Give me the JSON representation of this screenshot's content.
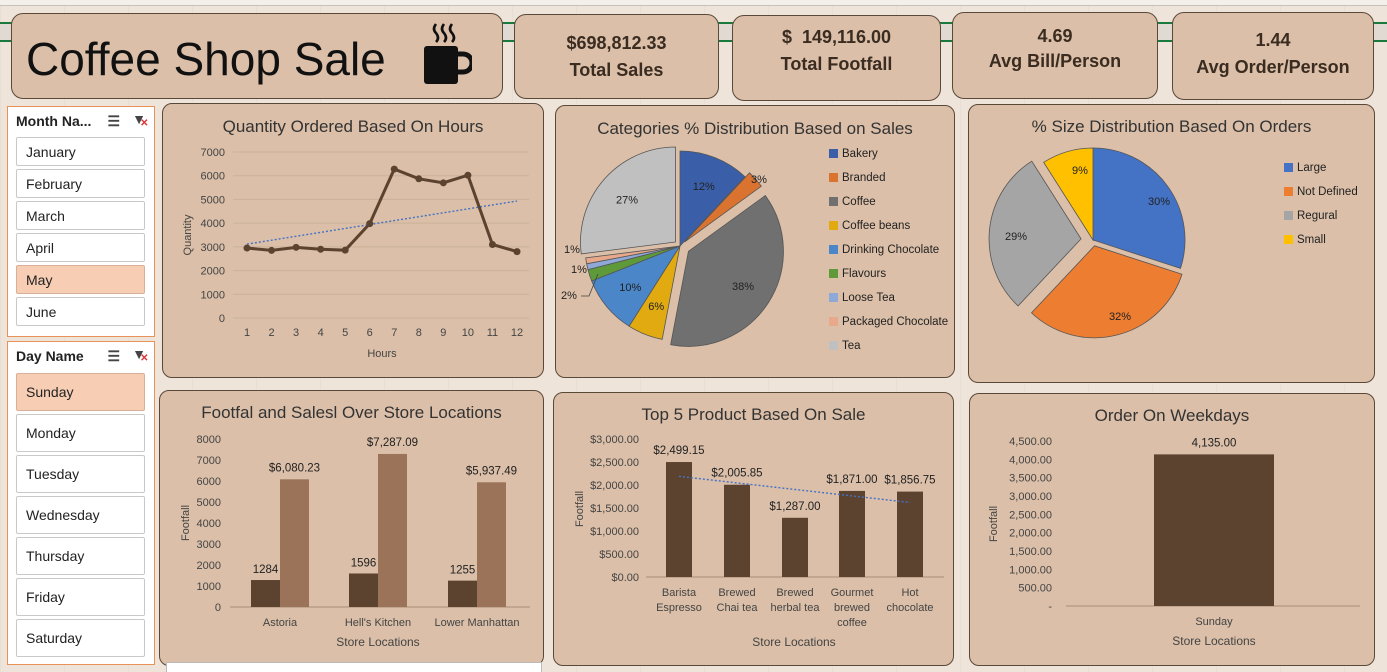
{
  "title": "Coffee Shop Sale",
  "kpis": [
    {
      "value": "$698,812.33",
      "label": "Total Sales"
    },
    {
      "value": "$  149,116.00",
      "label": "Total Footfall"
    },
    {
      "value": "4.69",
      "label": "Avg Bill/Person"
    },
    {
      "value": "1.44",
      "label": "Avg Order/Person"
    }
  ],
  "month_slicer": {
    "header": "Month Na...",
    "items": [
      "January",
      "February",
      "March",
      "April",
      "May",
      "June"
    ],
    "selected": "May"
  },
  "day_slicer": {
    "header": "Day Name",
    "items": [
      "Sunday",
      "Monday",
      "Tuesday",
      "Wednesday",
      "Thursday",
      "Friday",
      "Saturday"
    ],
    "selected": "Sunday"
  },
  "colors": {
    "brand_dark": "#5c4330",
    "brand_light": "#9b7358",
    "panel": "#dbbfa8",
    "trend": "#4472c4"
  },
  "chart_data": [
    {
      "type": "line",
      "title": "Quantity Ordered Based On Hours",
      "xlabel": "Hours",
      "ylabel": "Quantity",
      "x": [
        1,
        2,
        3,
        4,
        5,
        6,
        7,
        8,
        9,
        10,
        11,
        12
      ],
      "values": [
        2950,
        2850,
        2980,
        2900,
        2860,
        3980,
        6280,
        5870,
        5700,
        6020,
        3100,
        2800
      ],
      "ylim": [
        0,
        7000
      ],
      "yticks": [
        0,
        1000,
        2000,
        3000,
        4000,
        5000,
        6000,
        7000
      ],
      "trendline": "linear"
    },
    {
      "type": "pie",
      "title": "Categories % Distribution Based on Sales",
      "labels": [
        "Bakery",
        "Branded",
        "Coffee",
        "Coffee beans",
        "Drinking Chocolate",
        "Flavours",
        "Loose Tea",
        "Packaged Chocolate",
        "Tea"
      ],
      "values": [
        12,
        3,
        38,
        6,
        10,
        2,
        1,
        1,
        27
      ],
      "value_labels": [
        "12%",
        "3%",
        "38%",
        "6%",
        "10%",
        "2%",
        "1%",
        "1%",
        "27%"
      ],
      "colors": [
        "#3a5fa8",
        "#d9732f",
        "#707070",
        "#e0aa10",
        "#4a86c8",
        "#5f9a3a",
        "#8ea8d8",
        "#e8a88a",
        "#c0c0c0"
      ],
      "legend": "right"
    },
    {
      "type": "pie",
      "title": "% Size Distribution Based On Orders",
      "labels": [
        "Large",
        "Not Defined",
        "Regural",
        "Small"
      ],
      "values": [
        30,
        32,
        29,
        9
      ],
      "value_labels": [
        "30%",
        "32%",
        "29%",
        "9%"
      ],
      "colors": [
        "#4472c4",
        "#ed7d31",
        "#a5a5a5",
        "#ffc000"
      ],
      "legend": "right"
    },
    {
      "type": "bar",
      "title": "Footfal and Salesl Over Store Locations",
      "xlabel": "Store Locations",
      "ylabel": "Footfall",
      "categories": [
        "Astoria",
        "Hell's Kitchen",
        "Lower Manhattan"
      ],
      "series": [
        {
          "values": [
            1284,
            1596,
            1255
          ],
          "labels": [
            "1284",
            "1596",
            "1255"
          ]
        },
        {
          "values": [
            6080.23,
            7287.09,
            5937.49
          ],
          "labels": [
            "$6,080.23",
            "$7,287.09",
            "$5,937.49"
          ]
        }
      ],
      "ylim": [
        0,
        8000
      ],
      "yticks": [
        "0",
        "1000",
        "2000",
        "3000",
        "4000",
        "5000",
        "6000",
        "7000",
        "8000"
      ]
    },
    {
      "type": "bar",
      "title": "Top 5  Product Based On Sale",
      "xlabel": "Store Locations",
      "ylabel": "Footfall",
      "categories": [
        [
          "Barista",
          "Espresso"
        ],
        [
          "Brewed",
          "Chai tea"
        ],
        [
          "Brewed",
          "herbal tea"
        ],
        [
          "Gourmet",
          "brewed",
          "coffee"
        ],
        [
          "Hot",
          "chocolate"
        ]
      ],
      "values": [
        2499.15,
        2005.85,
        1287.0,
        1871.0,
        1856.75
      ],
      "value_labels": [
        "$2,499.15",
        "$2,005.85",
        "$1,287.00",
        "$1,871.00",
        "$1,856.75"
      ],
      "ylim": [
        0,
        3000
      ],
      "yticks": [
        "$0.00",
        "$500.00",
        "$1,000.00",
        "$1,500.00",
        "$2,000.00",
        "$2,500.00",
        "$3,000.00"
      ],
      "trendline": "linear"
    },
    {
      "type": "bar",
      "title": "Order On Weekdays",
      "xlabel": "Store Locations",
      "ylabel": "Footfall",
      "categories": [
        "Sunday"
      ],
      "values": [
        4135.0
      ],
      "value_labels": [
        "4,135.00"
      ],
      "ylim": [
        0,
        4500
      ],
      "yticks": [
        "-",
        "500.00",
        "1,000.00",
        "1,500.00",
        "2,000.00",
        "2,500.00",
        "3,000.00",
        "3,500.00",
        "4,000.00",
        "4,500.00"
      ]
    }
  ]
}
